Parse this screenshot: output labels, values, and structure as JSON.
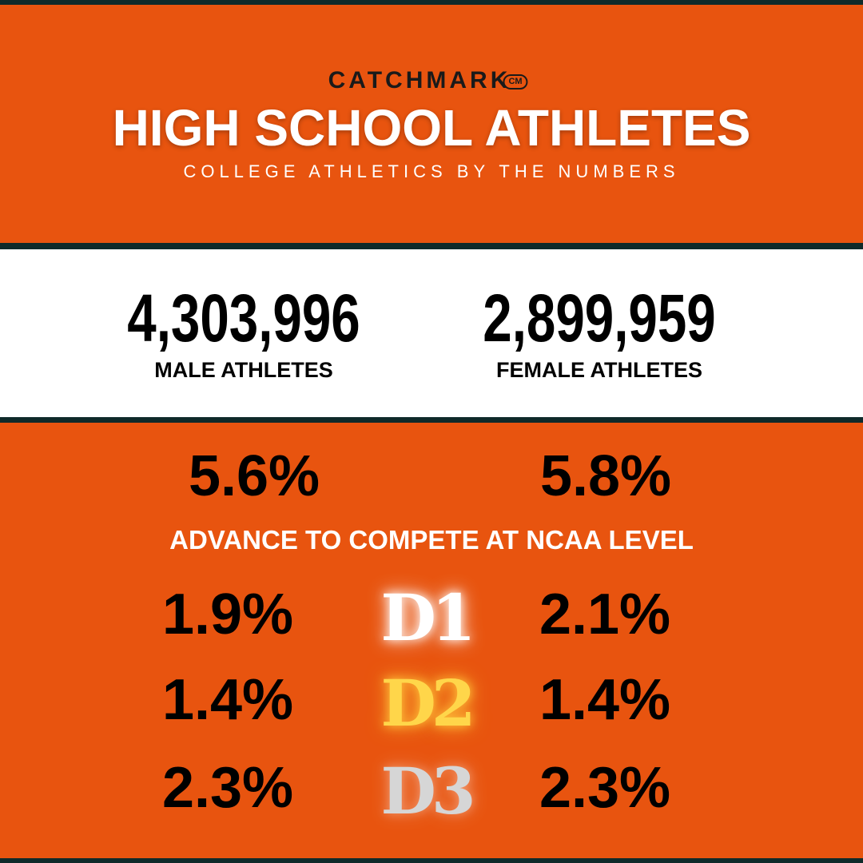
{
  "header": {
    "brand": "CATCHMARK",
    "brand_mark": "CM",
    "title": "HIGH SCHOOL ATHLETES",
    "subtitle": "COLLEGE ATHLETICS BY THE NUMBERS"
  },
  "totals": [
    {
      "value": "4,303,996",
      "label": "MALE ATHLETES"
    },
    {
      "value": "2,899,959",
      "label": "FEMALE ATHLETES"
    }
  ],
  "rates": {
    "male": "5.6%",
    "female": "5.8%",
    "caption": "ADVANCE TO COMPETE AT NCAA LEVEL"
  },
  "divisions": [
    {
      "name": "D1",
      "male": "1.9%",
      "female": "2.1%"
    },
    {
      "name": "D2",
      "male": "1.4%",
      "female": "1.4%"
    },
    {
      "name": "D3",
      "male": "2.3%",
      "female": "2.3%"
    }
  ]
}
